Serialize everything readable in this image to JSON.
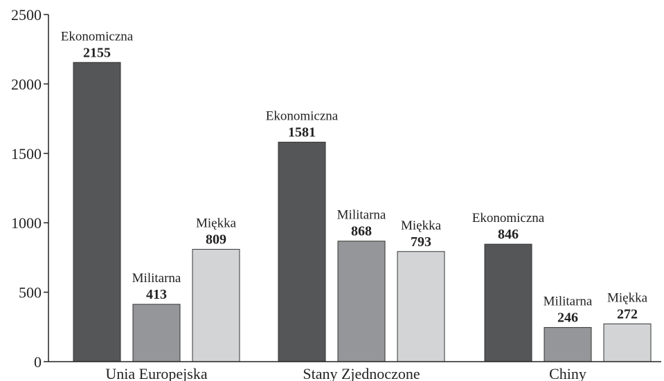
{
  "chart_data": {
    "type": "bar",
    "title": "",
    "xlabel": "",
    "ylabel": "",
    "ylim": [
      0,
      2500
    ],
    "yticks": [
      0,
      500,
      1000,
      1500,
      2000,
      2500
    ],
    "categories": [
      "Unia Europejska",
      "Stany Zjednoczone",
      "Chiny"
    ],
    "series": [
      {
        "name": "Ekonomiczna",
        "values": [
          2155,
          1581,
          846
        ]
      },
      {
        "name": "Militarna",
        "values": [
          413,
          868,
          246
        ]
      },
      {
        "name": "Miękka",
        "values": [
          809,
          793,
          272
        ]
      }
    ],
    "grid": false,
    "legend": "none",
    "data_labels": "series name and value above each bar",
    "colors": {
      "Ekonomiczna": "#555658",
      "Militarna": "#959699",
      "Miękka": "#d3d4d6",
      "axis": "#222222",
      "bar_stroke": "#333333"
    }
  }
}
